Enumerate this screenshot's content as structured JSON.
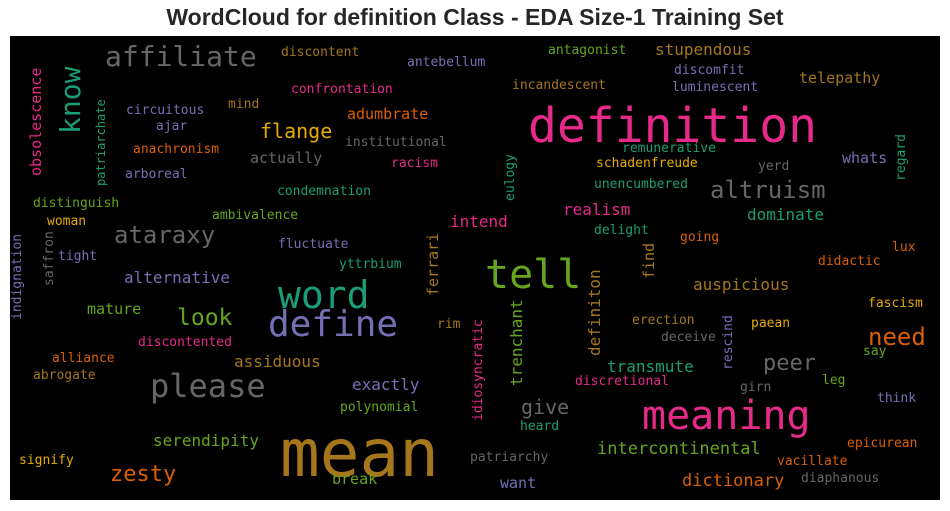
{
  "chart_data": {
    "type": "wordcloud",
    "title": "WordCloud for definition Class - EDA Size-1 Training Set",
    "background": "#000000",
    "colors": {
      "pink": "#e7298a",
      "teal": "#1b9e77",
      "orange": "#d95f02",
      "purple": "#7570b3",
      "green": "#66a61e",
      "gold": "#e6ab02",
      "brown": "#a6761d",
      "gray": "#666666"
    },
    "words": [
      {
        "text": "mean",
        "color": "brown",
        "weight": 1.0
      },
      {
        "text": "definition",
        "color": "pink",
        "weight": 0.85
      },
      {
        "text": "meaning",
        "color": "pink",
        "weight": 0.75
      },
      {
        "text": "tell",
        "color": "green",
        "weight": 0.7
      },
      {
        "text": "word",
        "color": "teal",
        "weight": 0.68
      },
      {
        "text": "define",
        "color": "purple",
        "weight": 0.64
      },
      {
        "text": "please",
        "color": "gray",
        "weight": 0.6
      },
      {
        "text": "affiliate",
        "color": "gray",
        "weight": 0.55
      },
      {
        "text": "know",
        "color": "teal",
        "weight": 0.55
      },
      {
        "text": "altruism",
        "color": "gray",
        "weight": 0.45
      },
      {
        "text": "ataraxy",
        "color": "gray",
        "weight": 0.45
      },
      {
        "text": "look",
        "color": "green",
        "weight": 0.42
      },
      {
        "text": "need",
        "color": "orange",
        "weight": 0.42
      },
      {
        "text": "zesty",
        "color": "orange",
        "weight": 0.4
      },
      {
        "text": "peer",
        "color": "gray",
        "weight": 0.38
      },
      {
        "text": "flange",
        "color": "gold",
        "weight": 0.35
      },
      {
        "text": "give",
        "color": "gray",
        "weight": 0.35
      },
      {
        "text": "trenchant",
        "color": "green",
        "weight": 0.32
      },
      {
        "text": "definiton",
        "color": "brown",
        "weight": 0.3
      },
      {
        "text": "intercontinental",
        "color": "green",
        "weight": 0.3
      },
      {
        "text": "dictionary",
        "color": "orange",
        "weight": 0.3
      },
      {
        "text": "obsolescence",
        "color": "pink",
        "weight": 0.28
      },
      {
        "text": "dominate",
        "color": "teal",
        "weight": 0.28
      },
      {
        "text": "realism",
        "color": "pink",
        "weight": 0.28
      },
      {
        "text": "auspicious",
        "color": "brown",
        "weight": 0.28
      },
      {
        "text": "stupendous",
        "color": "brown",
        "weight": 0.27
      },
      {
        "text": "serendipity",
        "color": "green",
        "weight": 0.27
      },
      {
        "text": "assiduous",
        "color": "brown",
        "weight": 0.26
      },
      {
        "text": "alternative",
        "color": "purple",
        "weight": 0.26
      },
      {
        "text": "intend",
        "color": "pink",
        "weight": 0.26
      },
      {
        "text": "exactly",
        "color": "purple",
        "weight": 0.26
      },
      {
        "text": "transmute",
        "color": "teal",
        "weight": 0.26
      },
      {
        "text": "telepathy",
        "color": "brown",
        "weight": 0.25
      },
      {
        "text": "adumbrate",
        "color": "orange",
        "weight": 0.25
      },
      {
        "text": "actually",
        "color": "gray",
        "weight": 0.25
      },
      {
        "text": "mature",
        "color": "green",
        "weight": 0.25
      },
      {
        "text": "whats",
        "color": "purple",
        "weight": 0.25
      },
      {
        "text": "ferrari",
        "color": "brown",
        "weight": 0.25
      },
      {
        "text": "find",
        "color": "brown",
        "weight": 0.25
      },
      {
        "text": "want",
        "color": "purple",
        "weight": 0.24
      },
      {
        "text": "break",
        "color": "green",
        "weight": 0.24
      },
      {
        "text": "discontent",
        "color": "brown",
        "weight": 0.18
      },
      {
        "text": "antebellum",
        "color": "purple",
        "weight": 0.18
      },
      {
        "text": "antagonist",
        "color": "green",
        "weight": 0.18
      },
      {
        "text": "confrontation",
        "color": "pink",
        "weight": 0.18
      },
      {
        "text": "incandescent",
        "color": "brown",
        "weight": 0.18
      },
      {
        "text": "discomfit",
        "color": "purple",
        "weight": 0.18
      },
      {
        "text": "luminescent",
        "color": "purple",
        "weight": 0.18
      },
      {
        "text": "patriarchate",
        "color": "teal",
        "weight": 0.17
      },
      {
        "text": "circuitous",
        "color": "purple",
        "weight": 0.18
      },
      {
        "text": "mind",
        "color": "brown",
        "weight": 0.17
      },
      {
        "text": "ajar",
        "color": "purple",
        "weight": 0.17
      },
      {
        "text": "institutional",
        "color": "gray",
        "weight": 0.18
      },
      {
        "text": "remunerative",
        "color": "teal",
        "weight": 0.17
      },
      {
        "text": "anachronism",
        "color": "orange",
        "weight": 0.18
      },
      {
        "text": "racism",
        "color": "pink",
        "weight": 0.18
      },
      {
        "text": "schadenfreude",
        "color": "gold",
        "weight": 0.18
      },
      {
        "text": "arboreal",
        "color": "purple",
        "weight": 0.17
      },
      {
        "text": "yerd",
        "color": "gray",
        "weight": 0.17
      },
      {
        "text": "regard",
        "color": "teal",
        "weight": 0.17
      },
      {
        "text": "condemnation",
        "color": "teal",
        "weight": 0.18
      },
      {
        "text": "eulogy",
        "color": "teal",
        "weight": 0.17
      },
      {
        "text": "unencumbered",
        "color": "teal",
        "weight": 0.18
      },
      {
        "text": "distinguish",
        "color": "green",
        "weight": 0.18
      },
      {
        "text": "woman",
        "color": "gold",
        "weight": 0.17
      },
      {
        "text": "ambivalence",
        "color": "green",
        "weight": 0.18
      },
      {
        "text": "delight",
        "color": "teal",
        "weight": 0.17
      },
      {
        "text": "saffron",
        "color": "gray",
        "weight": 0.17
      },
      {
        "text": "indignation",
        "color": "purple",
        "weight": 0.17
      },
      {
        "text": "tight",
        "color": "purple",
        "weight": 0.17
      },
      {
        "text": "fluctuate",
        "color": "purple",
        "weight": 0.18
      },
      {
        "text": "going",
        "color": "orange",
        "weight": 0.17
      },
      {
        "text": "lux",
        "color": "orange",
        "weight": 0.17
      },
      {
        "text": "didactic",
        "color": "orange",
        "weight": 0.17
      },
      {
        "text": "yttrbium",
        "color": "teal",
        "weight": 0.17
      },
      {
        "text": "fascism",
        "color": "gold",
        "weight": 0.17
      },
      {
        "text": "rim",
        "color": "brown",
        "weight": 0.17
      },
      {
        "text": "idiosyncratic",
        "color": "pink",
        "weight": 0.17
      },
      {
        "text": "erection",
        "color": "brown",
        "weight": 0.17
      },
      {
        "text": "rescind",
        "color": "purple",
        "weight": 0.17
      },
      {
        "text": "paean",
        "color": "gold",
        "weight": 0.17
      },
      {
        "text": "deceive",
        "color": "gray",
        "weight": 0.17
      },
      {
        "text": "say",
        "color": "green",
        "weight": 0.17
      },
      {
        "text": "discontented",
        "color": "pink",
        "weight": 0.18
      },
      {
        "text": "alliance",
        "color": "orange",
        "weight": 0.17
      },
      {
        "text": "abrogate",
        "color": "brown",
        "weight": 0.17
      },
      {
        "text": "discretional",
        "color": "pink",
        "weight": 0.18
      },
      {
        "text": "girn",
        "color": "gray",
        "weight": 0.17
      },
      {
        "text": "leg",
        "color": "green",
        "weight": 0.17
      },
      {
        "text": "polynomial",
        "color": "green",
        "weight": 0.17
      },
      {
        "text": "think",
        "color": "purple",
        "weight": 0.17
      },
      {
        "text": "heard",
        "color": "teal",
        "weight": 0.17
      },
      {
        "text": "epicurean",
        "color": "orange",
        "weight": 0.18
      },
      {
        "text": "signify",
        "color": "gold",
        "weight": 0.17
      },
      {
        "text": "patriarchy",
        "color": "gray",
        "weight": 0.17
      },
      {
        "text": "vacillate",
        "color": "orange",
        "weight": 0.17
      },
      {
        "text": "diaphanous",
        "color": "gray",
        "weight": 0.17
      }
    ]
  }
}
